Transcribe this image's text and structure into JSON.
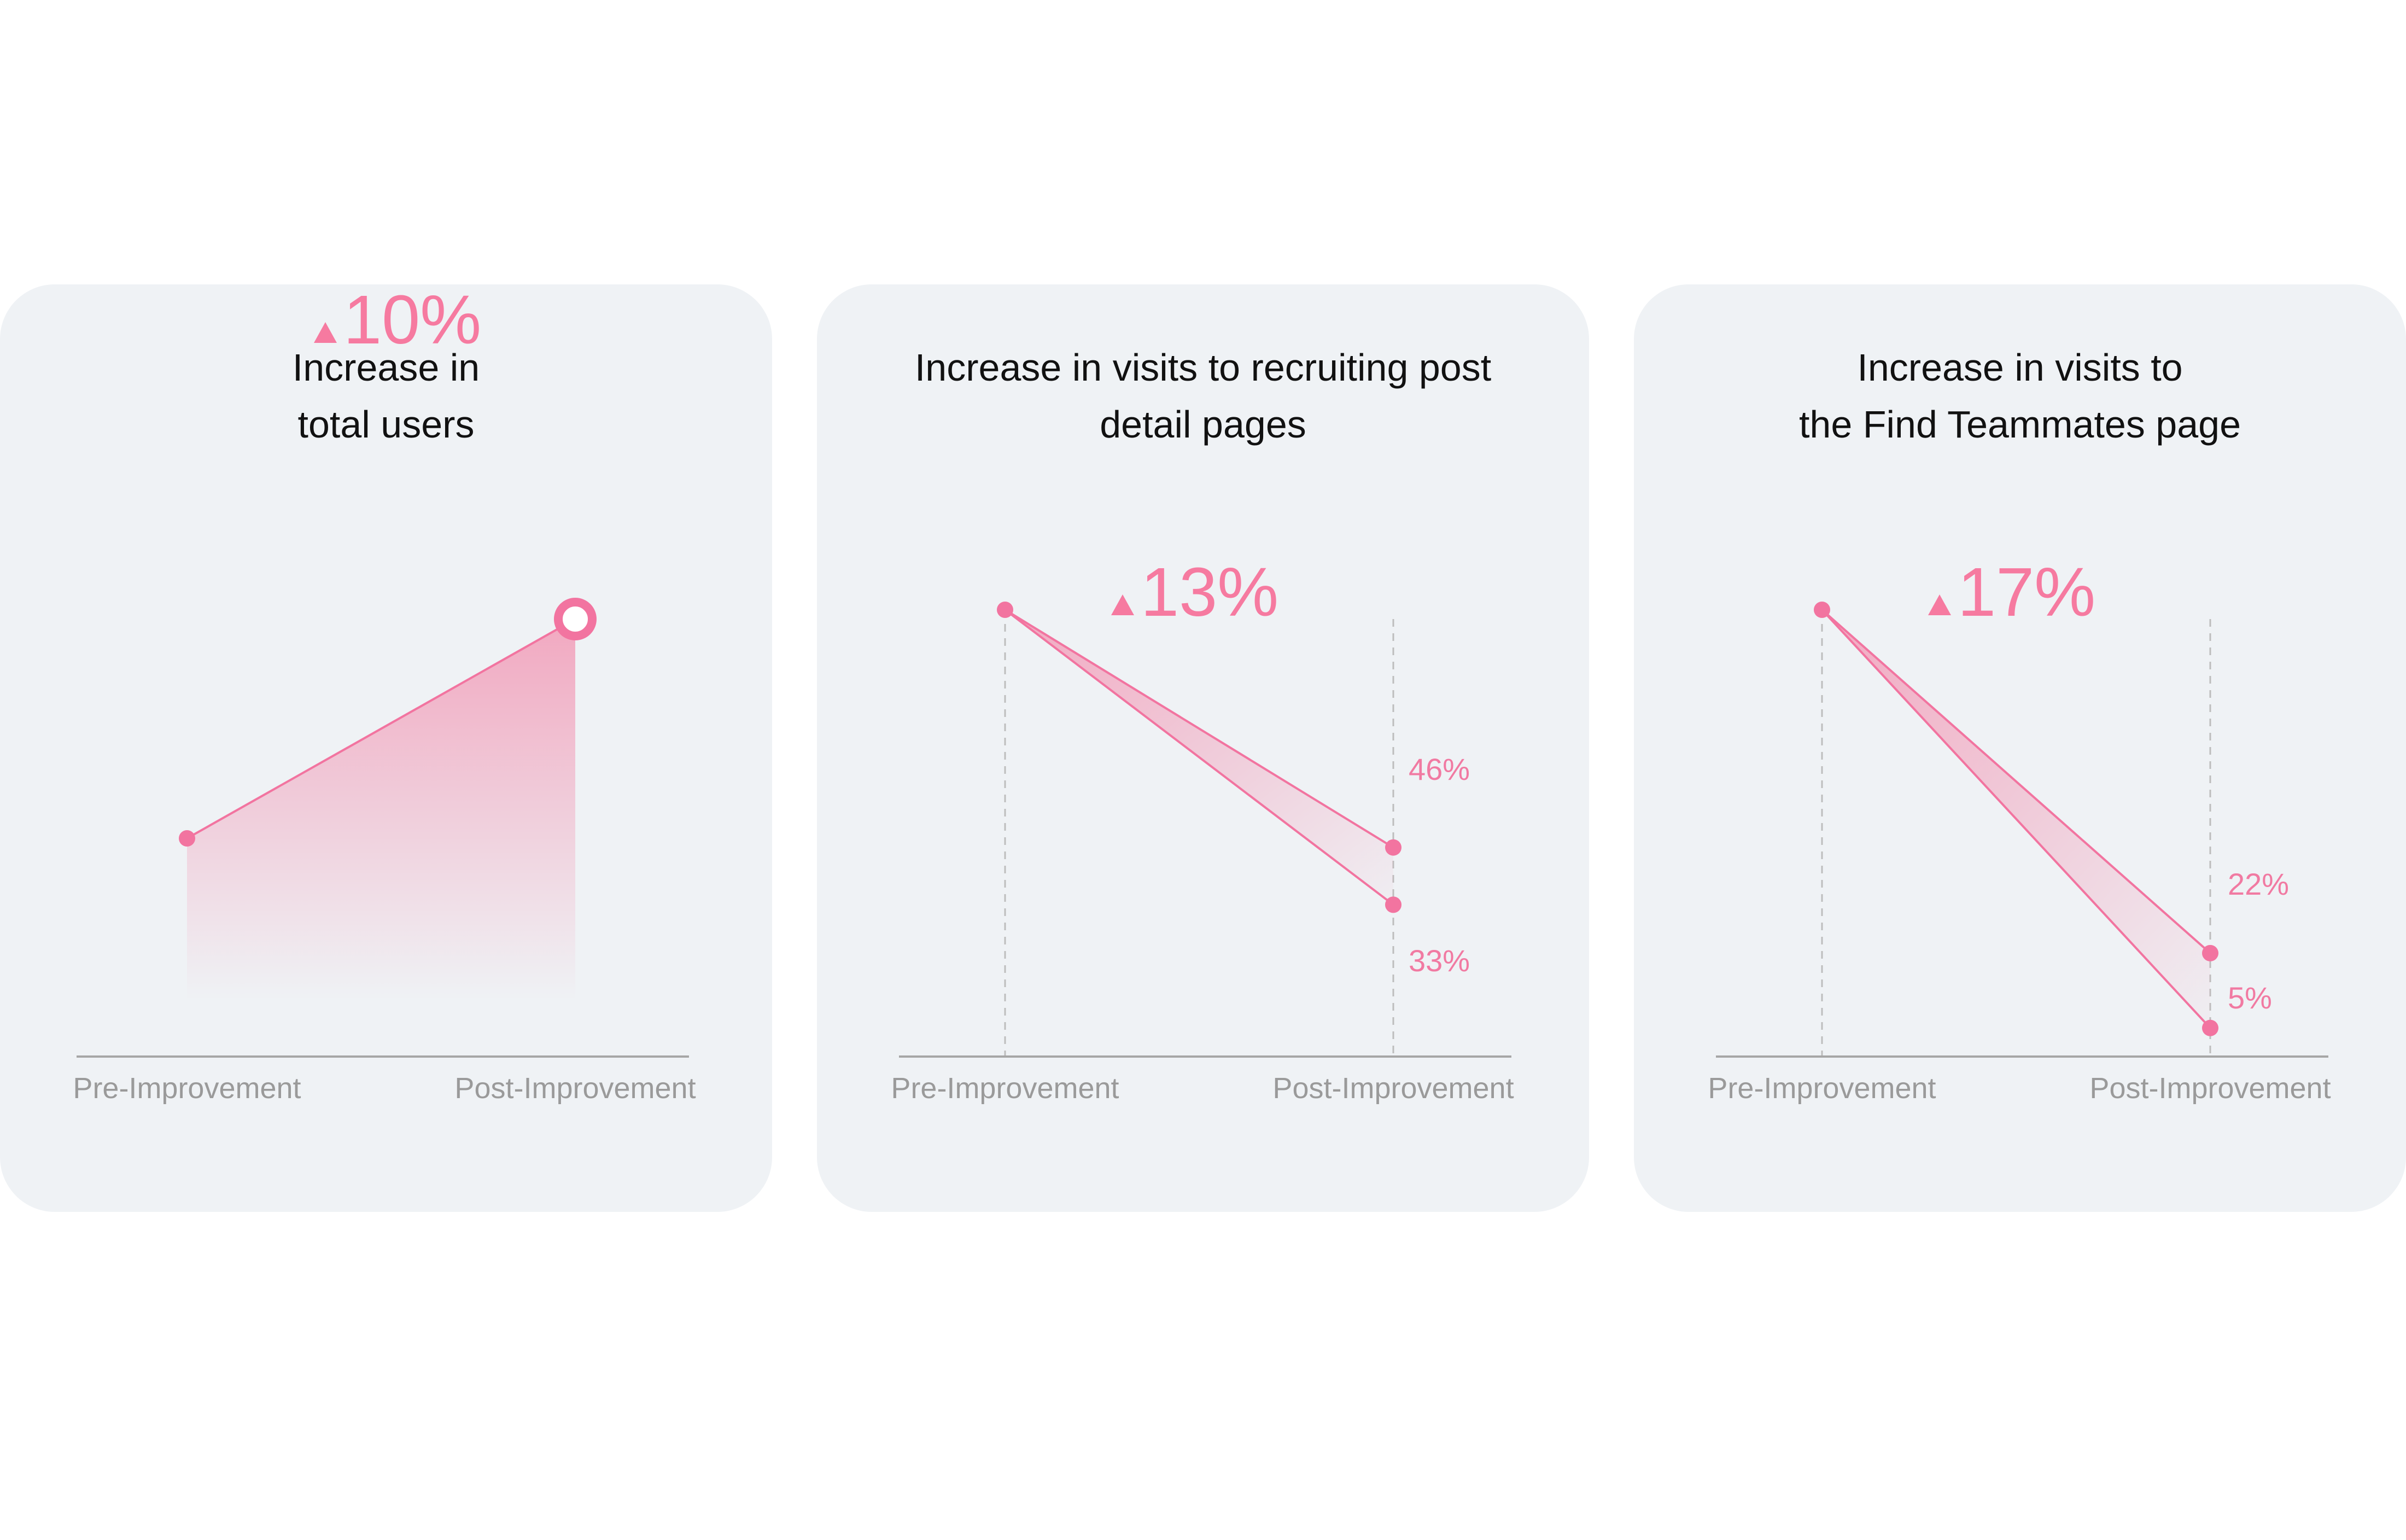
{
  "colors": {
    "card_background": "#eff2f5",
    "accent": "#f67aa0",
    "line": "#f274a0",
    "axis": "#a6a6a6",
    "axis_label": "#9a9a9a",
    "title": "#111111"
  },
  "icons": {
    "increase": "triangle-up-icon"
  },
  "chart_data": [
    {
      "type": "area",
      "title_lines": [
        "Increase in",
        "total users"
      ],
      "headline": "10%",
      "categories": [
        "Pre-Improvement",
        "Post-Improvement"
      ],
      "series": [
        {
          "values": [
            0.49,
            1.0
          ]
        }
      ],
      "point_labels": [],
      "highlight_end_point": true
    },
    {
      "type": "area",
      "title_lines": [
        "Increase in visits to recruiting post",
        "detail pages"
      ],
      "headline": "13%",
      "categories": [
        "Pre-Improvement",
        "Post-Improvement"
      ],
      "series": [
        {
          "values": [
            100,
            46
          ]
        },
        {
          "values": [
            100,
            33
          ]
        }
      ],
      "point_labels": [
        "46%",
        "33%"
      ],
      "guides": true
    },
    {
      "type": "area",
      "title_lines": [
        "Increase in visits to",
        "the Find Teammates page"
      ],
      "headline": "17%",
      "categories": [
        "Pre-Improvement",
        "Post-Improvement"
      ],
      "series": [
        {
          "values": [
            100,
            22
          ]
        },
        {
          "values": [
            100,
            5
          ]
        }
      ],
      "point_labels": [
        "22%",
        "5%"
      ],
      "guides": true
    }
  ]
}
